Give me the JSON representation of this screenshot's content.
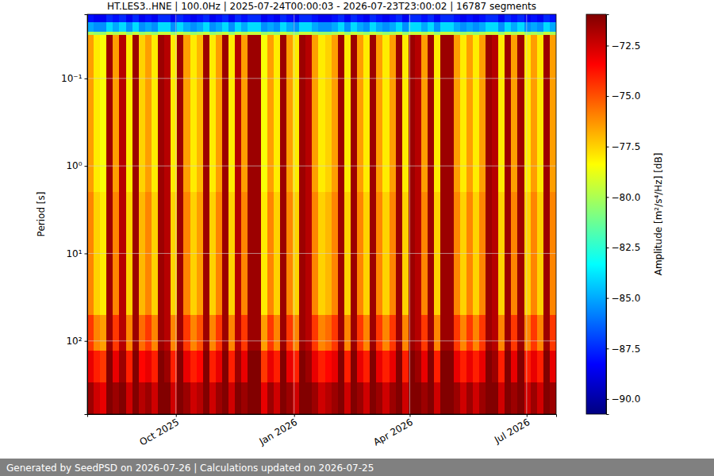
{
  "chart_data": {
    "type": "heatmap",
    "title": "HT.LES3..HNE | 100.0Hz | 2025-07-24T00:00:03 - 2026-07-23T23:00:02 | 16787 segments",
    "ylabel": "Period [s]",
    "colorbar_label": "Amplitude [m²/s⁴/Hz] [dB]",
    "footer": "Generated by SeedPSD on 2026-07-26 | Calculations updated on 2026-07-25",
    "log": "y",
    "grid": true,
    "color": "jet",
    "xlim": [
      "2025-07-24T00:00:03",
      "2026-07-23T23:00:02"
    ],
    "ylim": [
      0.0185,
      686
    ],
    "xticks": [
      {
        "value": "2025-10-01",
        "label": "Oct 2025"
      },
      {
        "value": "2026-01-01",
        "label": "Jan 2026"
      },
      {
        "value": "2026-04-01",
        "label": "Apr 2026"
      },
      {
        "value": "2026-07-01",
        "label": "Jul 2026"
      }
    ],
    "yticks": [
      {
        "value": 0.1,
        "label": "10⁻¹"
      },
      {
        "value": 1,
        "label": "10⁰"
      },
      {
        "value": 10,
        "label": "10¹"
      },
      {
        "value": 100,
        "label": "10²"
      }
    ],
    "clim": [
      -90.75,
      -70.95
    ],
    "cticks": [
      {
        "value": -72.5,
        "label": "−72.5"
      },
      {
        "value": -75,
        "label": "−75.0"
      },
      {
        "value": -77.5,
        "label": "−77.5"
      },
      {
        "value": -80,
        "label": "−80.0"
      },
      {
        "value": -82.5,
        "label": "−82.5"
      },
      {
        "value": -85,
        "label": "−85.0"
      },
      {
        "value": -87.5,
        "label": "−87.5"
      },
      {
        "value": -90,
        "label": "−90.0"
      }
    ],
    "x_edges": [
      "2025-07-24",
      "2025-07-29",
      "2025-08-03",
      "2025-08-08",
      "2025-08-13",
      "2025-08-18",
      "2025-08-23",
      "2025-08-28",
      "2025-09-02",
      "2025-09-07",
      "2025-09-12",
      "2025-09-17",
      "2025-09-22",
      "2025-09-27",
      "2025-10-02",
      "2025-10-07",
      "2025-10-12",
      "2025-10-17",
      "2025-10-22",
      "2025-10-27",
      "2025-11-01",
      "2025-11-06",
      "2025-11-11",
      "2025-11-16",
      "2025-11-21",
      "2025-11-26",
      "2025-12-01",
      "2025-12-06",
      "2025-12-11",
      "2025-12-16",
      "2025-12-21",
      "2025-12-26",
      "2025-12-31",
      "2026-01-05",
      "2026-01-10",
      "2026-01-15",
      "2026-01-20",
      "2026-01-25",
      "2026-01-30",
      "2026-02-04",
      "2026-02-09",
      "2026-02-14",
      "2026-02-19",
      "2026-02-24",
      "2026-03-01",
      "2026-03-06",
      "2026-03-11",
      "2026-03-16",
      "2026-03-21",
      "2026-03-26",
      "2026-03-31",
      "2026-04-05",
      "2026-04-10",
      "2026-04-15",
      "2026-04-20",
      "2026-04-25",
      "2026-04-30",
      "2026-05-05",
      "2026-05-10",
      "2026-05-15",
      "2026-05-20",
      "2026-05-25",
      "2026-05-30",
      "2026-06-04",
      "2026-06-09",
      "2026-06-14",
      "2026-06-19",
      "2026-06-24",
      "2026-06-29",
      "2026-07-04",
      "2026-07-09",
      "2026-07-14",
      "2026-07-19",
      "2026-07-23T23:00:02"
    ],
    "y_edges": [
      0.0185,
      0.023,
      0.029,
      0.032,
      2,
      50,
      130,
      300,
      686
    ],
    "values": [
      [
        -88,
        -88.5,
        -88.5,
        -87.5,
        -88,
        -87.5,
        -88.5,
        -87.5,
        -88.5,
        -88,
        -88.5,
        -87.5,
        -87.5,
        -88.5,
        -87.5,
        -88,
        -88.5,
        -88,
        -87.5,
        -88.5,
        -88,
        -87.5,
        -88.5,
        -87.5,
        -88,
        -87.5,
        -87.5,
        -88.5,
        -88,
        -88.5,
        -87.5,
        -88,
        -88.5,
        -87.5,
        -87.5,
        -88,
        -88.5,
        -88.5,
        -88,
        -87.5,
        -88.5,
        -87.5,
        -88,
        -88.5,
        -87.5,
        -88,
        -88.5,
        -88,
        -87.5,
        -88.5,
        -87.5,
        -87.5,
        -88,
        -87.5,
        -88.5,
        -87.5,
        -87.5,
        -88,
        -88.5,
        -88,
        -88.5,
        -88,
        -87.5,
        -87.5,
        -88.5,
        -87.5,
        -88,
        -87.5,
        -88.5,
        -88,
        -88.5,
        -87.5,
        -88
      ],
      [
        -85,
        -85.5,
        -85.5,
        -84,
        -85,
        -84,
        -85.5,
        -84,
        -85.5,
        -85,
        -85.5,
        -84,
        -84,
        -85.5,
        -84,
        -85,
        -85.5,
        -85,
        -84,
        -85.5,
        -85,
        -84,
        -85.5,
        -84,
        -85,
        -84,
        -84,
        -85.5,
        -85,
        -85.5,
        -84,
        -85,
        -85.5,
        -84,
        -84,
        -85,
        -85.5,
        -85.5,
        -85,
        -84,
        -85.5,
        -84,
        -85,
        -85.5,
        -84,
        -85,
        -85.5,
        -85,
        -84,
        -85.5,
        -84,
        -84,
        -85,
        -84,
        -85.5,
        -84,
        -84,
        -85,
        -85.5,
        -85,
        -85.5,
        -85,
        -84,
        -84,
        -85.5,
        -84,
        -85,
        -84,
        -85.5,
        -85,
        -85.5,
        -84,
        -85
      ],
      [
        -80,
        -80.5,
        -80.5,
        -79.5,
        -80,
        -79.5,
        -80.5,
        -79.5,
        -80.5,
        -80,
        -80.5,
        -79.5,
        -79.5,
        -80.5,
        -79.5,
        -80,
        -80.5,
        -80,
        -79.5,
        -80.5,
        -80,
        -79.5,
        -80.5,
        -79.5,
        -80,
        -79.5,
        -79.5,
        -80.5,
        -80,
        -80.5,
        -79.5,
        -80,
        -80.5,
        -79.5,
        -79.5,
        -80,
        -80.5,
        -80.5,
        -80,
        -79.5,
        -80.5,
        -79.5,
        -80,
        -80.5,
        -79.5,
        -80,
        -80.5,
        -80,
        -79.5,
        -80.5,
        -79.5,
        -79.5,
        -80,
        -79.5,
        -80.5,
        -79.5,
        -79.5,
        -80,
        -80.5,
        -80,
        -80.5,
        -80,
        -79.5,
        -79.5,
        -80.5,
        -79.5,
        -80,
        -79.5,
        -80.5,
        -80,
        -80.5,
        -79.5,
        -80
      ],
      [
        -76.5,
        -78,
        -78.5,
        -71.5,
        -76.5,
        -72,
        -78,
        -71.5,
        -77.5,
        -76.5,
        -78,
        -71.5,
        -72,
        -78,
        -71.5,
        -76.5,
        -78,
        -77,
        -71.5,
        -78,
        -76.5,
        -71.5,
        -78,
        -72,
        -76.5,
        -71.5,
        -71.5,
        -78.5,
        -76.5,
        -78,
        -71.5,
        -76.5,
        -78,
        -71.5,
        -72,
        -76.5,
        -78,
        -77.5,
        -76.5,
        -71.5,
        -78,
        -71.5,
        -76.5,
        -78,
        -71.5,
        -76.5,
        -78,
        -76.5,
        -71.5,
        -78,
        -71.5,
        -72,
        -76.5,
        -71.5,
        -78,
        -71.5,
        -71.5,
        -76.5,
        -78,
        -76.5,
        -78,
        -76.5,
        -71.5,
        -72,
        -78,
        -71.5,
        -76.5,
        -71.5,
        -78,
        -76.5,
        -78,
        -71.5,
        -76.5
      ],
      [
        -76,
        -77.5,
        -78,
        -71.5,
        -76,
        -72,
        -77.5,
        -71.5,
        -77,
        -76,
        -77.5,
        -71.5,
        -72,
        -77.5,
        -71.5,
        -76,
        -77.5,
        -76.5,
        -71.5,
        -77.5,
        -76,
        -71.5,
        -77.5,
        -72,
        -76,
        -71.5,
        -71.5,
        -78,
        -76,
        -77.5,
        -71.5,
        -76,
        -77.5,
        -71.5,
        -72,
        -76,
        -77.5,
        -77,
        -76,
        -71.5,
        -77.5,
        -71.5,
        -76,
        -77.5,
        -71.5,
        -76,
        -77.5,
        -76,
        -71.5,
        -77.5,
        -71.5,
        -72,
        -76,
        -71.5,
        -77.5,
        -71.5,
        -71.5,
        -76,
        -77.5,
        -76,
        -77.5,
        -76,
        -71.5,
        -72,
        -77.5,
        -71.5,
        -76,
        -71.5,
        -77.5,
        -76,
        -77.5,
        -71.5,
        -76
      ],
      [
        -74.5,
        -76,
        -76.5,
        -71.5,
        -74.5,
        -72,
        -76,
        -71.5,
        -75.5,
        -74.5,
        -76,
        -71.5,
        -72,
        -76,
        -71.5,
        -74.5,
        -76,
        -75,
        -71.5,
        -76,
        -74.5,
        -71.5,
        -76,
        -72,
        -74.5,
        -71.5,
        -71.5,
        -76.5,
        -74.5,
        -76,
        -71.5,
        -74.5,
        -76,
        -71.5,
        -72,
        -74.5,
        -76,
        -75.5,
        -74.5,
        -71.5,
        -76,
        -71.5,
        -74.5,
        -76,
        -71.5,
        -74.5,
        -76,
        -74.5,
        -71.5,
        -76,
        -71.5,
        -72,
        -74.5,
        -71.5,
        -76,
        -71.5,
        -71.5,
        -74.5,
        -76,
        -74.5,
        -76,
        -74.5,
        -71.5,
        -72,
        -76,
        -71.5,
        -74.5,
        -71.5,
        -76,
        -74.5,
        -76,
        -71.5,
        -74.5
      ],
      [
        -73,
        -74,
        -74.5,
        -71,
        -73,
        -71.5,
        -74,
        -71,
        -73.5,
        -73,
        -74,
        -71,
        -71.5,
        -74,
        -71,
        -73,
        -74,
        -73.5,
        -71,
        -74,
        -73,
        -71,
        -74,
        -71.5,
        -73,
        -71,
        -71,
        -74.5,
        -73,
        -74,
        -71,
        -73,
        -74,
        -71,
        -71.5,
        -73,
        -74,
        -73.5,
        -73,
        -71,
        -74,
        -71,
        -73,
        -74,
        -71,
        -73,
        -74,
        -73,
        -71,
        -74,
        -71,
        -71.5,
        -73,
        -71,
        -74,
        -71,
        -71,
        -73,
        -74,
        -73,
        -74,
        -73,
        -71,
        -71.5,
        -74,
        -71,
        -73,
        -71,
        -74,
        -73,
        -74,
        -71,
        -73
      ],
      [
        -71.5,
        -72.5,
        -73,
        -71,
        -71.5,
        -71,
        -72.5,
        -71,
        -72,
        -71.5,
        -72.5,
        -71,
        -71,
        -72.5,
        -71,
        -71.5,
        -72.5,
        -72,
        -71,
        -72.5,
        -71.5,
        -71,
        -72.5,
        -71,
        -71.5,
        -71,
        -71,
        -73,
        -71.5,
        -72.5,
        -71,
        -71.5,
        -72.5,
        -71,
        -71,
        -71.5,
        -72.5,
        -72,
        -71.5,
        -71,
        -72.5,
        -71,
        -71.5,
        -72.5,
        -71,
        -71.5,
        -72.5,
        -71.5,
        -71,
        -72.5,
        -71,
        -71,
        -71.5,
        -71,
        -72.5,
        -71,
        -71,
        -71.5,
        -72.5,
        -71.5,
        -72.5,
        -71.5,
        -71,
        -71,
        -72.5,
        -71,
        -71.5,
        -71,
        -72.5,
        -71.5,
        -72.5,
        -71,
        -71.5
      ]
    ]
  }
}
